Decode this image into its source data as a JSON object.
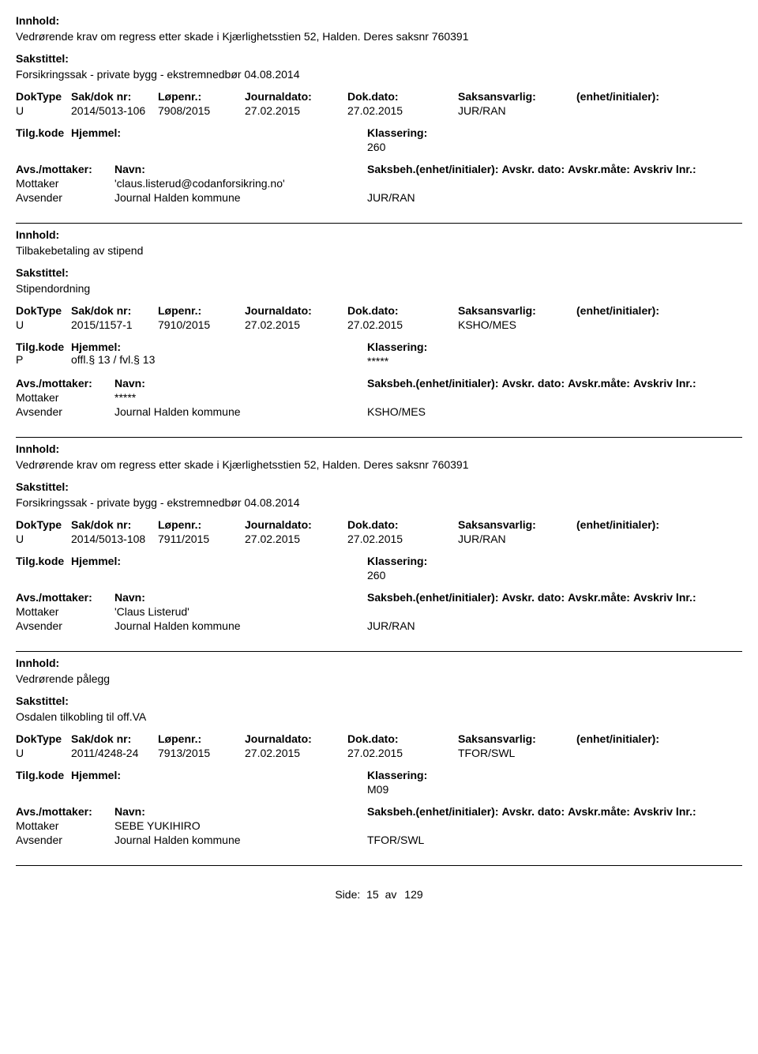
{
  "labels": {
    "innhold": "Innhold:",
    "sakstittel": "Sakstittel:",
    "doktype": "DokType",
    "sakdok": "Sak/dok nr:",
    "lopenr": "Løpenr.:",
    "journaldato": "Journaldato:",
    "dokdato": "Dok.dato:",
    "saksansvarlig": "Saksansvarlig:",
    "enhet": "(enhet/initialer):",
    "tilgkode": "Tilg.kode",
    "hjemmel": "Hjemmel:",
    "klassering": "Klassering:",
    "avsmottaker": "Avs./mottaker:",
    "navn": "Navn:",
    "saksbeh": "Saksbeh.(enhet/initialer):",
    "avskrdato": "Avskr. dato:",
    "avskrmate": "Avskr.måte:",
    "avskrivlnr": "Avskriv lnr.:"
  },
  "records": [
    {
      "innhold": "Vedrørende krav om regress etter skade i Kjærlighetsstien 52, Halden. Deres saksnr 760391",
      "sakstittel": "Forsikringssak - private bygg - ekstremnedbør 04.08.2014",
      "doktype": "U",
      "sakdok": "2014/5013-106",
      "lopenr": "7908/2015",
      "journaldato": "27.02.2015",
      "dokdato": "27.02.2015",
      "saksansvarlig": "JUR/RAN",
      "tilgkode": "",
      "hjemmel": "",
      "klassering": "260",
      "parties": [
        {
          "role": "Mottaker",
          "name": "'claus.listerud@codanforsikring.no'",
          "beh": ""
        },
        {
          "role": "Avsender",
          "name": "Journal Halden kommune",
          "beh": "JUR/RAN"
        }
      ]
    },
    {
      "innhold": "Tilbakebetaling av stipend",
      "sakstittel": "Stipendordning",
      "doktype": "U",
      "sakdok": "2015/1157-1",
      "lopenr": "7910/2015",
      "journaldato": "27.02.2015",
      "dokdato": "27.02.2015",
      "saksansvarlig": "KSHO/MES",
      "tilgkode": "P",
      "hjemmel": "offl.§ 13 / fvl.§ 13",
      "klassering": "*****",
      "parties": [
        {
          "role": "Mottaker",
          "name": "*****",
          "beh": ""
        },
        {
          "role": "Avsender",
          "name": "Journal Halden kommune",
          "beh": "KSHO/MES"
        }
      ]
    },
    {
      "innhold": "Vedrørende krav om regress etter skade i Kjærlighetsstien 52, Halden. Deres saksnr 760391",
      "sakstittel": "Forsikringssak - private bygg - ekstremnedbør 04.08.2014",
      "doktype": "U",
      "sakdok": "2014/5013-108",
      "lopenr": "7911/2015",
      "journaldato": "27.02.2015",
      "dokdato": "27.02.2015",
      "saksansvarlig": "JUR/RAN",
      "tilgkode": "",
      "hjemmel": "",
      "klassering": "260",
      "parties": [
        {
          "role": "Mottaker",
          "name": "'Claus Listerud'",
          "beh": ""
        },
        {
          "role": "Avsender",
          "name": "Journal Halden kommune",
          "beh": "JUR/RAN"
        }
      ]
    },
    {
      "innhold": "Vedrørende pålegg",
      "sakstittel": "Osdalen tilkobling til off.VA",
      "doktype": "U",
      "sakdok": "2011/4248-24",
      "lopenr": "7913/2015",
      "journaldato": "27.02.2015",
      "dokdato": "27.02.2015",
      "saksansvarlig": "TFOR/SWL",
      "tilgkode": "",
      "hjemmel": "",
      "klassering": "M09",
      "parties": [
        {
          "role": "Mottaker",
          "name": "SEBE YUKIHIRO",
          "beh": ""
        },
        {
          "role": "Avsender",
          "name": "Journal Halden kommune",
          "beh": "TFOR/SWL"
        }
      ]
    }
  ],
  "footer": {
    "side": "Side:",
    "page": "15",
    "av": "av",
    "total": "129"
  }
}
